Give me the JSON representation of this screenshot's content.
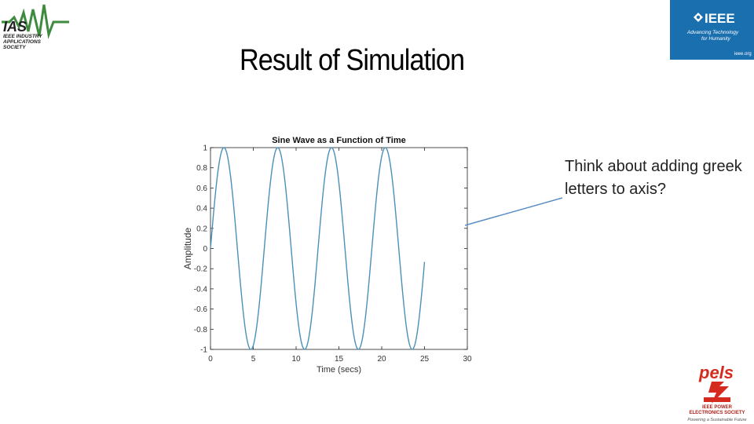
{
  "slide": {
    "title": "Result of Simulation",
    "callout": "Think about adding greek letters to axis?"
  },
  "logos": {
    "ias": {
      "text": "IAS",
      "sub": [
        "IEEE INDUSTRY",
        "APPLICATIONS",
        "SOCIETY"
      ]
    },
    "ieee": {
      "text": "IEEE",
      "tagline": [
        "Advancing Technology",
        "for Humanity"
      ],
      "url": "ieee.org"
    },
    "pels": {
      "text": "pels",
      "sub": [
        "IEEE POWER",
        "ELECTRONICS SOCIETY"
      ],
      "tagline": "Powering a Sustainable Future"
    }
  },
  "chart_data": {
    "type": "line",
    "title": "Sine Wave as a Function of Time",
    "xlabel": "Time (secs)",
    "ylabel": "Amplitude",
    "xlim": [
      0,
      30
    ],
    "ylim": [
      -1,
      1
    ],
    "xticks": [
      0,
      5,
      10,
      15,
      20,
      25,
      30
    ],
    "yticks": [
      1,
      0.8,
      0.6,
      0.4,
      0.2,
      0,
      -0.2,
      -0.4,
      -0.6,
      -0.8,
      -1
    ],
    "yticklabels": [
      "1",
      "0.8",
      "0.6",
      "0.4",
      "0.2",
      "0",
      "-0.2",
      "-0.4",
      "-0.6",
      "-0.8",
      "-1"
    ],
    "series": [
      {
        "function": "sin(t)",
        "x_start": 0,
        "x_end": 25,
        "color": "#4a90b8"
      }
    ],
    "grid": false,
    "box": true
  },
  "colors": {
    "accent": "#1a6faf",
    "pels_red": "#d52b1e",
    "arrow": "#5b8ec4"
  }
}
